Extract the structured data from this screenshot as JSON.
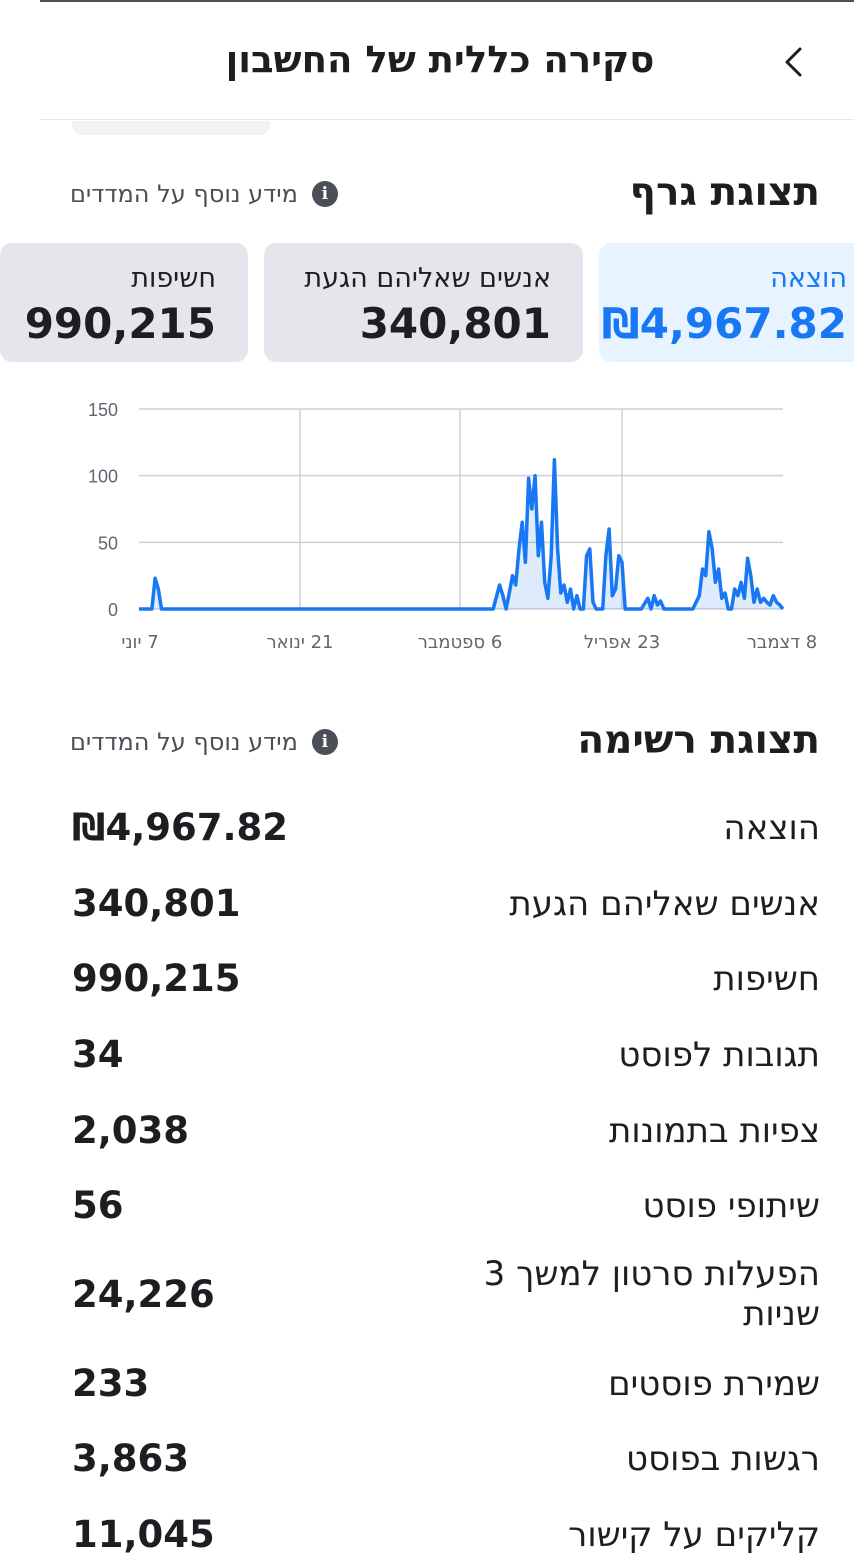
{
  "header": {
    "title": "סקירה כללית של החשבון",
    "back_icon": "chevron-left-icon"
  },
  "graph_section": {
    "title": "תצוגת גרף",
    "info_text": "מידע נוסף על המדדים",
    "info_icon": "info-icon"
  },
  "tiles": [
    {
      "label": "הוצאה",
      "value": "₪4,967.82",
      "active": true
    },
    {
      "label": "אנשים שאליהם הגעת",
      "value": "340,801",
      "active": false
    },
    {
      "label": "חשיפות",
      "value": "990,215",
      "active": false
    }
  ],
  "colors": {
    "accent": "#1877f2",
    "active_tile_bg": "#e7f3ff",
    "tile_bg": "#e4e6eb",
    "text": "#1c1e21",
    "grid": "#ccd0d5"
  },
  "chart_data": {
    "type": "line",
    "y_ticks": [
      "150",
      "100",
      "50",
      "0"
    ],
    "ylim": [
      0,
      150
    ],
    "x_tick_labels": [
      "7 יוני",
      "21 ינואר",
      "6 ספטמבר",
      "23 אפריל",
      "8 דצמבר"
    ],
    "grid": true,
    "series": [
      {
        "points": [
          [
            0,
            0
          ],
          [
            0.02,
            0
          ],
          [
            0.025,
            23
          ],
          [
            0.03,
            15
          ],
          [
            0.035,
            0
          ],
          [
            0.55,
            0
          ],
          [
            0.56,
            18
          ],
          [
            0.565,
            10
          ],
          [
            0.57,
            0
          ],
          [
            0.575,
            12
          ],
          [
            0.58,
            25
          ],
          [
            0.585,
            18
          ],
          [
            0.59,
            45
          ],
          [
            0.595,
            65
          ],
          [
            0.6,
            35
          ],
          [
            0.605,
            98
          ],
          [
            0.61,
            75
          ],
          [
            0.615,
            100
          ],
          [
            0.62,
            40
          ],
          [
            0.625,
            65
          ],
          [
            0.63,
            20
          ],
          [
            0.635,
            8
          ],
          [
            0.64,
            40
          ],
          [
            0.645,
            112
          ],
          [
            0.65,
            45
          ],
          [
            0.655,
            12
          ],
          [
            0.66,
            18
          ],
          [
            0.665,
            5
          ],
          [
            0.67,
            15
          ],
          [
            0.675,
            0
          ],
          [
            0.68,
            10
          ],
          [
            0.685,
            0
          ],
          [
            0.69,
            0
          ],
          [
            0.695,
            40
          ],
          [
            0.7,
            45
          ],
          [
            0.705,
            5
          ],
          [
            0.71,
            0
          ],
          [
            0.72,
            0
          ],
          [
            0.725,
            40
          ],
          [
            0.73,
            60
          ],
          [
            0.735,
            10
          ],
          [
            0.74,
            15
          ],
          [
            0.745,
            40
          ],
          [
            0.75,
            35
          ],
          [
            0.755,
            0
          ],
          [
            0.76,
            0
          ],
          [
            0.77,
            0
          ],
          [
            0.78,
            0
          ],
          [
            0.79,
            8
          ],
          [
            0.795,
            0
          ],
          [
            0.8,
            10
          ],
          [
            0.805,
            3
          ],
          [
            0.81,
            6
          ],
          [
            0.815,
            0
          ],
          [
            0.86,
            0
          ],
          [
            0.87,
            10
          ],
          [
            0.875,
            30
          ],
          [
            0.88,
            25
          ],
          [
            0.885,
            58
          ],
          [
            0.89,
            45
          ],
          [
            0.895,
            20
          ],
          [
            0.9,
            30
          ],
          [
            0.905,
            8
          ],
          [
            0.91,
            12
          ],
          [
            0.915,
            0
          ],
          [
            0.92,
            0
          ],
          [
            0.925,
            15
          ],
          [
            0.93,
            10
          ],
          [
            0.935,
            20
          ],
          [
            0.94,
            8
          ],
          [
            0.945,
            38
          ],
          [
            0.95,
            25
          ],
          [
            0.955,
            5
          ],
          [
            0.96,
            15
          ],
          [
            0.965,
            5
          ],
          [
            0.97,
            8
          ],
          [
            0.975,
            5
          ],
          [
            0.98,
            3
          ],
          [
            0.985,
            10
          ],
          [
            0.99,
            5
          ],
          [
            0.995,
            3
          ],
          [
            1,
            0
          ]
        ]
      }
    ]
  },
  "list_section": {
    "title": "תצוגת רשימה",
    "info_text": "מידע נוסף על המדדים",
    "info_icon": "info-icon"
  },
  "metrics": [
    {
      "label": "הוצאה",
      "value": "₪4,967.82"
    },
    {
      "label": "אנשים שאליהם הגעת",
      "value": "340,801"
    },
    {
      "label": "חשיפות",
      "value": "990,215"
    },
    {
      "label": "תגובות לפוסט",
      "value": "34"
    },
    {
      "label": "צפיות בתמונות",
      "value": "2,038"
    },
    {
      "label": "שיתופי פוסט",
      "value": "56"
    },
    {
      "label": "הפעלות סרטון למשך 3 שניות",
      "value": "24,226"
    },
    {
      "label": "שמירת פוסטים",
      "value": "233"
    },
    {
      "label": "רגשות בפוסט",
      "value": "3,863"
    },
    {
      "label": "קליקים על קישור",
      "value": "11,045"
    }
  ]
}
